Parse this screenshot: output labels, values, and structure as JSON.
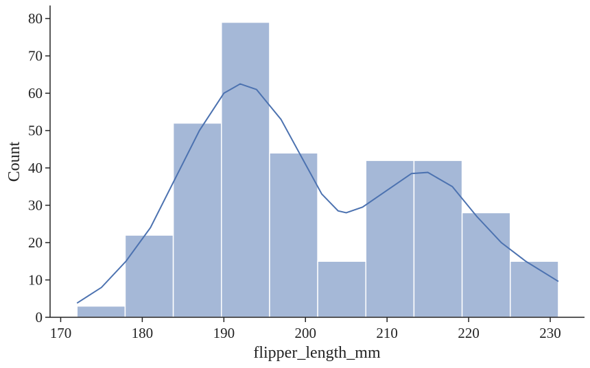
{
  "chart_data": {
    "type": "histogram",
    "x_label": "flipper_length_mm",
    "y_label": "Count",
    "bins": [
      172,
      177.9,
      183.8,
      189.7,
      195.6,
      201.5,
      207.4,
      213.3,
      219.2,
      225.1,
      231
    ],
    "values": [
      3,
      22,
      52,
      79,
      44,
      15,
      42,
      42,
      28,
      15
    ],
    "color": "#a5b8d7",
    "edge_color": "#ffffff",
    "kde": {
      "color": "#4c72b0",
      "x": [
        172,
        175,
        178,
        181,
        184,
        187,
        190,
        192,
        194,
        197,
        200,
        202,
        204,
        205,
        207,
        210,
        213,
        215,
        218,
        221,
        224,
        227,
        231
      ],
      "values": [
        3.8,
        8,
        15,
        24,
        37,
        50,
        60,
        62.5,
        61,
        53,
        41,
        33,
        28.5,
        28,
        29.5,
        34,
        38.5,
        38.8,
        35,
        27,
        20,
        15,
        9.6
      ]
    },
    "xlim": [
      168.7,
      234.2
    ],
    "ylim": [
      0,
      83.5
    ],
    "xticks": [
      170,
      180,
      190,
      200,
      210,
      220,
      230
    ],
    "yticks": [
      0,
      10,
      20,
      30,
      40,
      50,
      60,
      70,
      80
    ]
  }
}
